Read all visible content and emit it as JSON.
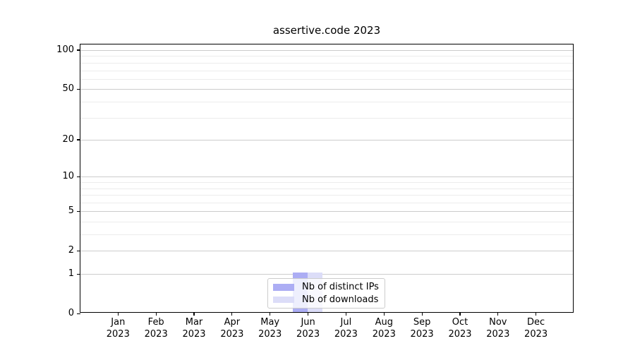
{
  "chart_data": {
    "type": "bar",
    "title": "assertive.code 2023",
    "categories": [
      {
        "month": "Jan",
        "year": "2023"
      },
      {
        "month": "Feb",
        "year": "2023"
      },
      {
        "month": "Mar",
        "year": "2023"
      },
      {
        "month": "Apr",
        "year": "2023"
      },
      {
        "month": "May",
        "year": "2023"
      },
      {
        "month": "Jun",
        "year": "2023"
      },
      {
        "month": "Jul",
        "year": "2023"
      },
      {
        "month": "Aug",
        "year": "2023"
      },
      {
        "month": "Sep",
        "year": "2023"
      },
      {
        "month": "Oct",
        "year": "2023"
      },
      {
        "month": "Nov",
        "year": "2023"
      },
      {
        "month": "Dec",
        "year": "2023"
      }
    ],
    "series": [
      {
        "name": "Nb of distinct IPs",
        "color": "#acadf4",
        "values": [
          0,
          0,
          0,
          0,
          0,
          1,
          0,
          0,
          0,
          0,
          0,
          0
        ]
      },
      {
        "name": "Nb of downloads",
        "color": "#dcddf8",
        "values": [
          0,
          0,
          0,
          0,
          0,
          1,
          0,
          0,
          0,
          0,
          0,
          0
        ]
      }
    ],
    "y_scale": "log1p",
    "y_major_ticks": [
      0,
      1,
      2,
      5,
      10,
      20,
      50,
      100
    ],
    "y_minor_ticks": [
      3,
      4,
      6,
      7,
      8,
      9,
      30,
      40,
      60,
      70,
      80,
      90
    ],
    "ylim": [
      0,
      110
    ],
    "grid": "both",
    "legend_position": "lower-center"
  },
  "colors": {
    "grid_major": "#cccccc",
    "grid_minor": "#ececec",
    "spine": "#000000",
    "legend_border": "#cccccc"
  }
}
